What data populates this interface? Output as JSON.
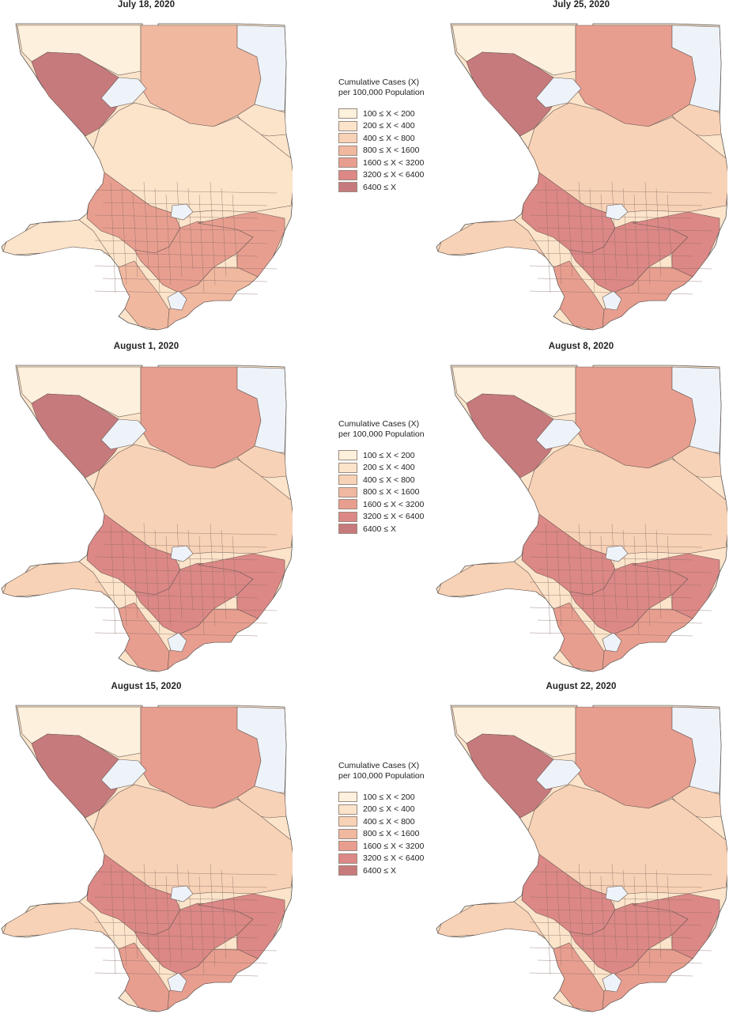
{
  "panels": [
    {
      "title": "July 18, 2020",
      "shift": 0
    },
    {
      "title": "July 25, 2020",
      "shift": 1
    },
    {
      "title": "August 1, 2020",
      "shift": 1
    },
    {
      "title": "August 8, 2020",
      "shift": 1
    },
    {
      "title": "August 15, 2020",
      "shift": 2
    },
    {
      "title": "August 22, 2020",
      "shift": 2
    }
  ],
  "legend": {
    "title_line1": "Cumulative Cases (X)",
    "title_line2": "per 100,000 Population",
    "classes": [
      {
        "label": "100 ≤ X < 200",
        "color": "#fdf0dc"
      },
      {
        "label": "200 ≤ X < 400",
        "color": "#fbe4ca"
      },
      {
        "label": "400 ≤ X < 800",
        "color": "#f8d2b6"
      },
      {
        "label": "800 ≤ X < 1600",
        "color": "#f1b8a0"
      },
      {
        "label": "1600 ≤ X < 3200",
        "color": "#e89e8f"
      },
      {
        "label": "3200 ≤ X < 6400",
        "color": "#dc8886"
      },
      {
        "label": "6400 ≤ X",
        "color": "#c77a7c"
      }
    ],
    "no_data_color": "#eef3fa"
  }
}
